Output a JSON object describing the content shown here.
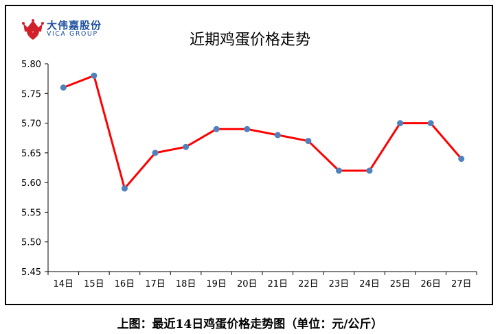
{
  "logo": {
    "name_cn": "大伟嘉股份",
    "name_en": "VICA GROUP",
    "icon": "crown-heart-icon"
  },
  "chart_data": {
    "type": "line",
    "title": "近期鸡蛋价格走势",
    "categories": [
      "14日",
      "15日",
      "16日",
      "17日",
      "18日",
      "19日",
      "20日",
      "21日",
      "22日",
      "23日",
      "24日",
      "25日",
      "26日",
      "27日"
    ],
    "series": [
      {
        "values": [
          5.76,
          5.78,
          5.59,
          5.65,
          5.66,
          5.69,
          5.69,
          5.68,
          5.67,
          5.62,
          5.62,
          5.7,
          5.7,
          5.64
        ]
      }
    ],
    "yticks": [
      "5.45",
      "5.50",
      "5.55",
      "5.60",
      "5.65",
      "5.70",
      "5.75",
      "5.80"
    ],
    "ylim": [
      5.45,
      5.8
    ],
    "grid": false,
    "line_color": "#ff0000",
    "marker_color": "#4f81bd"
  },
  "caption": "上图：最近14日鸡蛋价格走势图（单位：元/公斤）"
}
